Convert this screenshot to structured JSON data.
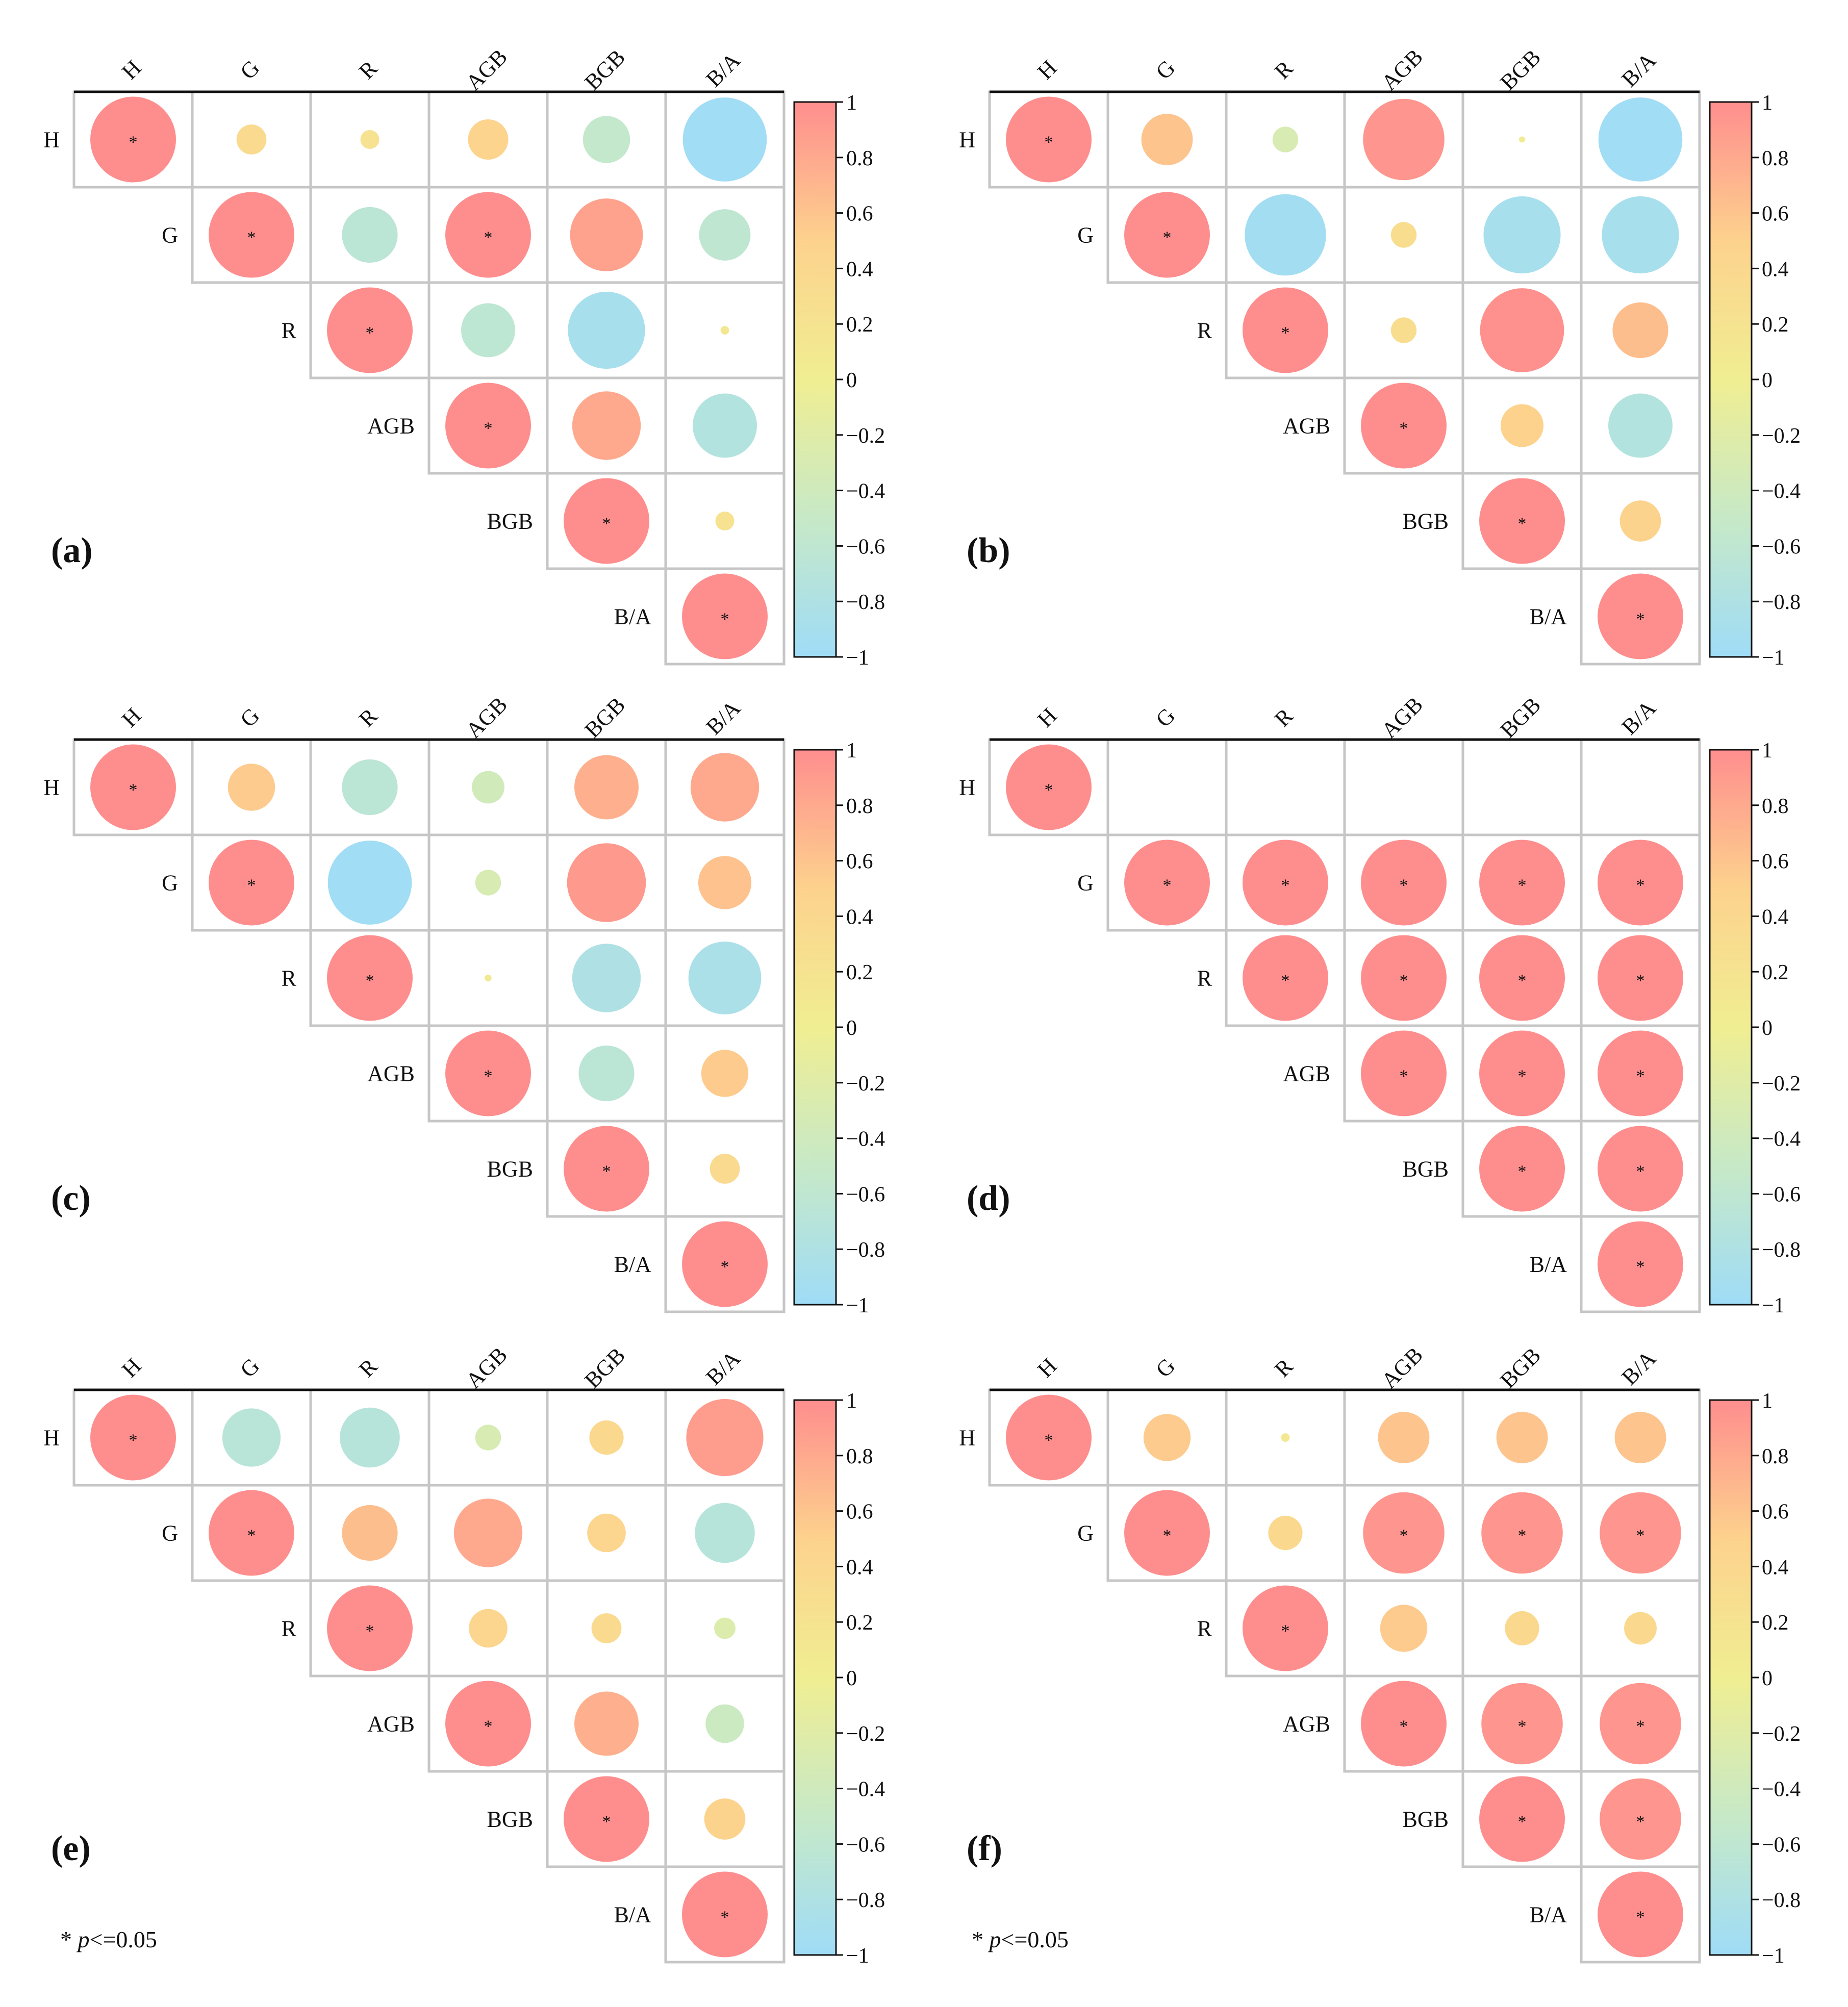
{
  "figure": {
    "significance_note_symbol": "*",
    "significance_note_p": "p",
    "significance_note_rest": "<=0.05"
  },
  "colorbar": {
    "ticks": [
      "1",
      "0.8",
      "0.6",
      "0.4",
      "0.2",
      "0",
      "−0.2",
      "−0.4",
      "−0.6",
      "−0.8",
      "−1"
    ],
    "colors": {
      "positive": "#fe8e8e",
      "mid_positive": "#fdd28d",
      "zero": "#f0ee92",
      "mid_negative": "#c7e9c7",
      "negative": "#9fdcf7"
    }
  },
  "chart_data": [
    {
      "type": "heatmap",
      "panel_label": "(a)",
      "variables": [
        "H",
        "G",
        "R",
        "AGB",
        "BGB",
        "B/A"
      ],
      "matrix": [
        [
          1,
          0.35,
          0.22,
          0.47,
          -0.55,
          -0.98
        ],
        [
          null,
          1,
          -0.65,
          1,
          0.85,
          -0.6
        ],
        [
          null,
          null,
          1,
          -0.63,
          -0.9,
          0.1
        ],
        [
          null,
          null,
          null,
          1,
          0.8,
          -0.75
        ],
        [
          null,
          null,
          null,
          null,
          1,
          0.22
        ],
        [
          null,
          null,
          null,
          null,
          null,
          1
        ]
      ],
      "significant": [
        [
          true,
          false,
          false,
          false,
          false,
          false
        ],
        [
          null,
          true,
          false,
          true,
          false,
          false
        ],
        [
          null,
          null,
          true,
          false,
          false,
          false
        ],
        [
          null,
          null,
          null,
          true,
          false,
          false
        ],
        [
          null,
          null,
          null,
          null,
          true,
          false
        ],
        [
          null,
          null,
          null,
          null,
          null,
          true
        ]
      ],
      "show_note": false
    },
    {
      "type": "heatmap",
      "panel_label": "(b)",
      "variables": [
        "H",
        "G",
        "R",
        "AGB",
        "BGB",
        "B/A"
      ],
      "matrix": [
        [
          1,
          0.6,
          -0.3,
          0.95,
          0.05,
          -0.98
        ],
        [
          null,
          1,
          -0.95,
          0.3,
          -0.9,
          -0.9
        ],
        [
          null,
          null,
          1,
          0.3,
          0.98,
          0.65
        ],
        [
          null,
          null,
          null,
          1,
          0.5,
          -0.75
        ],
        [
          null,
          null,
          null,
          null,
          1,
          0.48
        ],
        [
          null,
          null,
          null,
          null,
          null,
          1
        ]
      ],
      "significant": [
        [
          true,
          false,
          false,
          false,
          false,
          false
        ],
        [
          null,
          true,
          false,
          false,
          false,
          false
        ],
        [
          null,
          null,
          true,
          false,
          false,
          false
        ],
        [
          null,
          null,
          null,
          true,
          false,
          false
        ],
        [
          null,
          null,
          null,
          null,
          true,
          false
        ],
        [
          null,
          null,
          null,
          null,
          null,
          true
        ]
      ],
      "show_note": false
    },
    {
      "type": "heatmap",
      "panel_label": "(c)",
      "variables": [
        "H",
        "G",
        "R",
        "AGB",
        "BGB",
        "B/A"
      ],
      "matrix": [
        [
          1,
          0.55,
          -0.65,
          -0.38,
          0.75,
          0.8
        ],
        [
          null,
          1,
          -0.98,
          -0.3,
          0.92,
          0.62
        ],
        [
          null,
          null,
          1,
          0.08,
          -0.8,
          -0.85
        ],
        [
          null,
          null,
          null,
          1,
          -0.65,
          0.55
        ],
        [
          null,
          null,
          null,
          null,
          1,
          0.35
        ],
        [
          null,
          null,
          null,
          null,
          null,
          1
        ]
      ],
      "significant": [
        [
          true,
          false,
          false,
          false,
          false,
          false
        ],
        [
          null,
          true,
          false,
          false,
          false,
          false
        ],
        [
          null,
          null,
          true,
          false,
          false,
          false
        ],
        [
          null,
          null,
          null,
          true,
          false,
          false
        ],
        [
          null,
          null,
          null,
          null,
          true,
          false
        ],
        [
          null,
          null,
          null,
          null,
          null,
          true
        ]
      ],
      "show_note": false
    },
    {
      "type": "heatmap",
      "panel_label": "(d)",
      "variables": [
        "H",
        "G",
        "R",
        "AGB",
        "BGB",
        "B/A"
      ],
      "matrix": [
        [
          1,
          null,
          null,
          null,
          null,
          null
        ],
        [
          null,
          1,
          1,
          1,
          1,
          1
        ],
        [
          null,
          null,
          1,
          1,
          1,
          1
        ],
        [
          null,
          null,
          null,
          1,
          1,
          1
        ],
        [
          null,
          null,
          null,
          null,
          1,
          1
        ],
        [
          null,
          null,
          null,
          null,
          null,
          1
        ]
      ],
      "significant": [
        [
          true,
          false,
          false,
          false,
          false,
          false
        ],
        [
          null,
          true,
          true,
          true,
          true,
          true
        ],
        [
          null,
          null,
          true,
          true,
          true,
          true
        ],
        [
          null,
          null,
          null,
          true,
          true,
          true
        ],
        [
          null,
          null,
          null,
          null,
          true,
          true
        ],
        [
          null,
          null,
          null,
          null,
          null,
          true
        ]
      ],
      "show_note": false
    },
    {
      "type": "heatmap",
      "panel_label": "(e)",
      "variables": [
        "H",
        "G",
        "R",
        "AGB",
        "BGB",
        "B/A"
      ],
      "matrix": [
        [
          1,
          -0.68,
          -0.7,
          -0.3,
          0.4,
          0.9
        ],
        [
          null,
          1,
          0.65,
          0.8,
          0.45,
          -0.7
        ],
        [
          null,
          null,
          1,
          0.45,
          0.35,
          -0.25
        ],
        [
          null,
          null,
          null,
          1,
          0.75,
          -0.45
        ],
        [
          null,
          null,
          null,
          null,
          1,
          0.48
        ],
        [
          null,
          null,
          null,
          null,
          null,
          1
        ]
      ],
      "significant": [
        [
          true,
          false,
          false,
          false,
          false,
          false
        ],
        [
          null,
          true,
          false,
          false,
          false,
          false
        ],
        [
          null,
          null,
          true,
          false,
          false,
          false
        ],
        [
          null,
          null,
          null,
          true,
          false,
          false
        ],
        [
          null,
          null,
          null,
          null,
          true,
          false
        ],
        [
          null,
          null,
          null,
          null,
          null,
          true
        ]
      ],
      "show_note": true
    },
    {
      "type": "heatmap",
      "panel_label": "(f)",
      "variables": [
        "H",
        "G",
        "R",
        "AGB",
        "BGB",
        "B/A"
      ],
      "matrix": [
        [
          1,
          0.55,
          0.1,
          0.6,
          0.6,
          0.6
        ],
        [
          null,
          1,
          0.4,
          0.95,
          0.95,
          0.95
        ],
        [
          null,
          null,
          1,
          0.55,
          0.4,
          0.38
        ],
        [
          null,
          null,
          null,
          1,
          0.95,
          0.95
        ],
        [
          null,
          null,
          null,
          null,
          1,
          0.95
        ],
        [
          null,
          null,
          null,
          null,
          null,
          1
        ]
      ],
      "significant": [
        [
          true,
          false,
          false,
          false,
          false,
          false
        ],
        [
          null,
          true,
          false,
          true,
          true,
          true
        ],
        [
          null,
          null,
          true,
          false,
          false,
          false
        ],
        [
          null,
          null,
          null,
          true,
          true,
          true
        ],
        [
          null,
          null,
          null,
          null,
          true,
          true
        ],
        [
          null,
          null,
          null,
          null,
          null,
          true
        ]
      ],
      "show_note": true
    }
  ]
}
